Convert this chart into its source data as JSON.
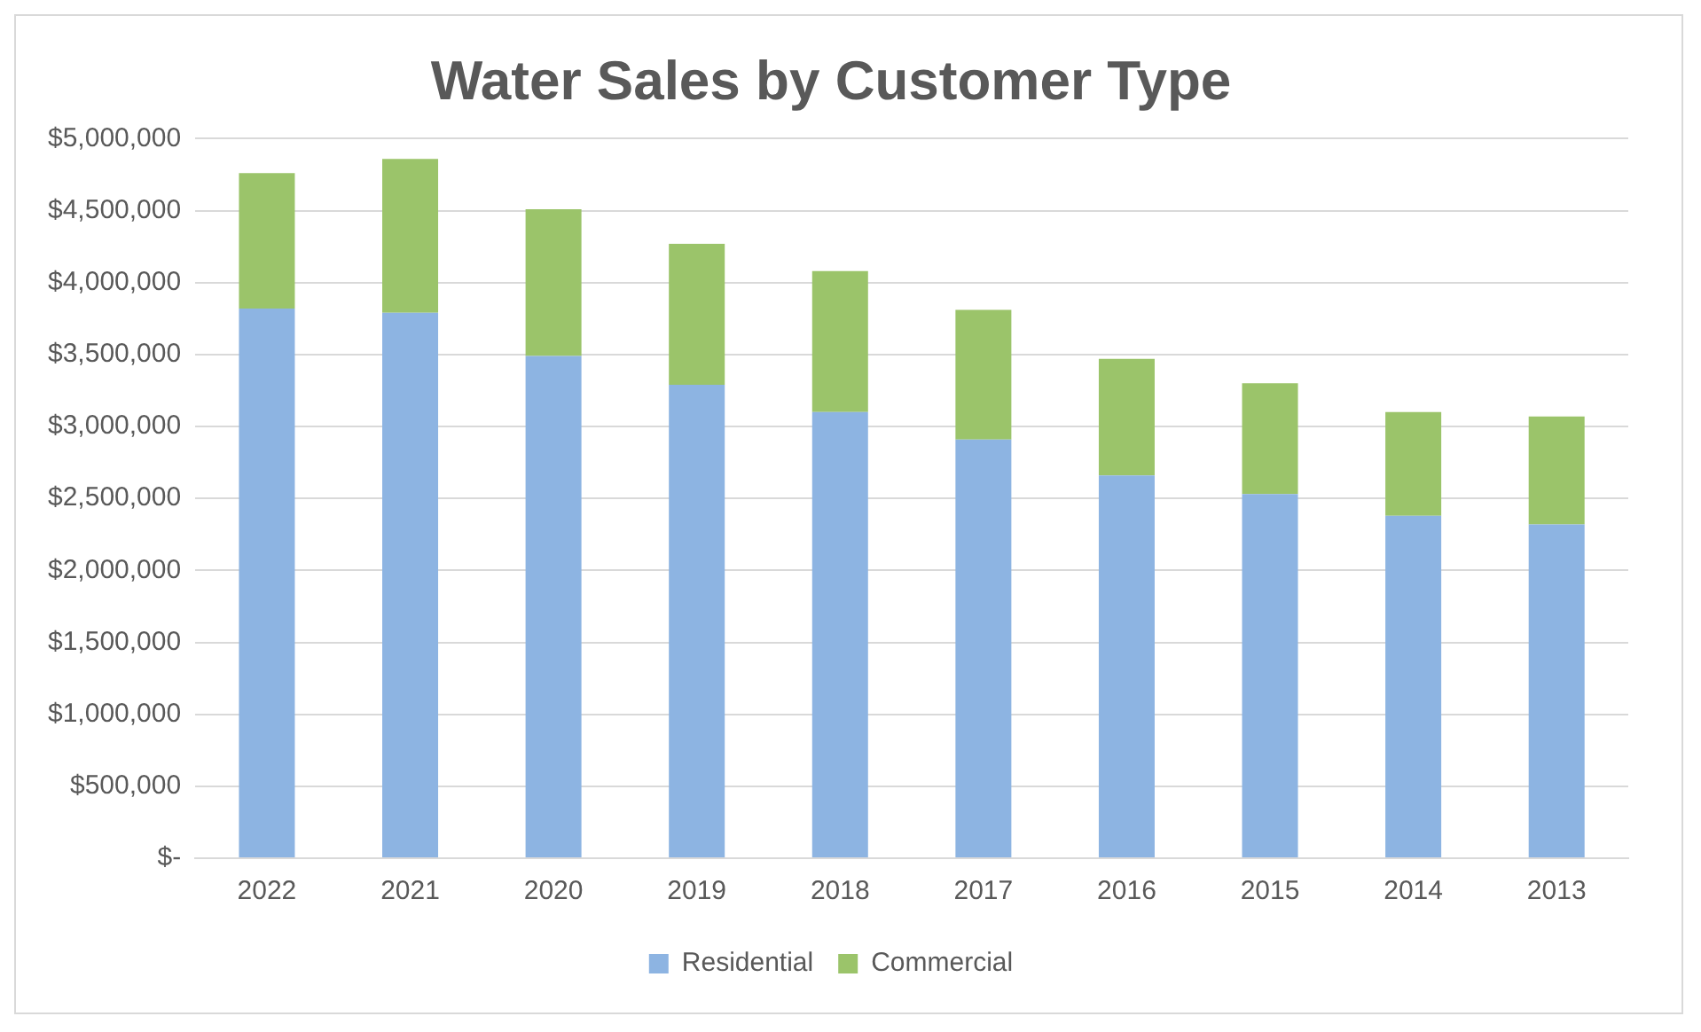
{
  "chart_data": {
    "type": "bar",
    "title": "Water Sales by Customer Type",
    "stacked": true,
    "categories": [
      "2022",
      "2021",
      "2020",
      "2019",
      "2018",
      "2017",
      "2016",
      "2015",
      "2014",
      "2013"
    ],
    "series": [
      {
        "name": "Residential",
        "color": "#8db4e2",
        "values": [
          3820000,
          3790000,
          3490000,
          3290000,
          3100000,
          2910000,
          2660000,
          2530000,
          2380000,
          2320000
        ]
      },
      {
        "name": "Commercial",
        "color": "#9bc46a",
        "values": [
          940000,
          1070000,
          1020000,
          980000,
          980000,
          900000,
          810000,
          770000,
          720000,
          750000
        ]
      }
    ],
    "ylim": [
      0,
      5000000
    ],
    "yticks": [
      {
        "value": 0,
        "label": "$-"
      },
      {
        "value": 500000,
        "label": "$500,000"
      },
      {
        "value": 1000000,
        "label": "$1,000,000"
      },
      {
        "value": 1500000,
        "label": "$1,500,000"
      },
      {
        "value": 2000000,
        "label": "$2,000,000"
      },
      {
        "value": 2500000,
        "label": "$2,500,000"
      },
      {
        "value": 3000000,
        "label": "$3,000,000"
      },
      {
        "value": 3500000,
        "label": "$3,500,000"
      },
      {
        "value": 4000000,
        "label": "$4,000,000"
      },
      {
        "value": 4500000,
        "label": "$4,500,000"
      },
      {
        "value": 5000000,
        "label": "$5,000,000"
      }
    ],
    "grid": "y",
    "legend": "bottom"
  }
}
